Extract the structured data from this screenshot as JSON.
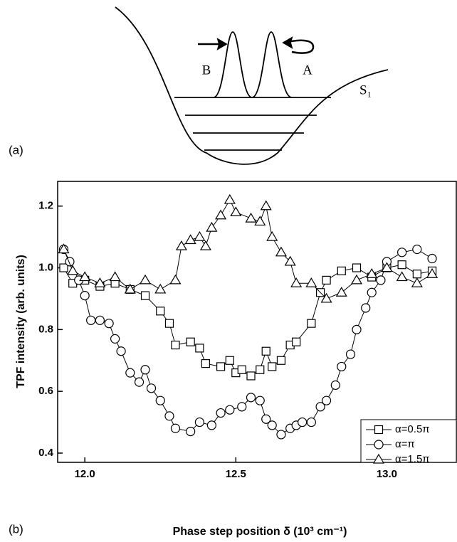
{
  "diagram": {
    "panel_label": "(a)",
    "label_a": "A",
    "label_b": "B",
    "label_s": "S₁"
  },
  "chart_data": {
    "type": "line",
    "panel_label": "(b)",
    "x_label": "Phase step position δ (10³ cm⁻¹)",
    "y_label": "TPF intensity (arb. units)",
    "xlim": [
      11.91,
      13.23
    ],
    "ylim": [
      0.37,
      1.28
    ],
    "xticks": [
      {
        "value": 12,
        "label": "12.0"
      },
      12.5,
      {
        "value": 13,
        "label": "13.0"
      }
    ],
    "yticks": [
      0.4,
      0.6,
      0.8,
      {
        "value": 1,
        "label": "1.0"
      },
      1.2
    ],
    "legend": "bottom-right",
    "series": [
      {
        "name": "α=0.5π",
        "marker": "square",
        "color": "#000000",
        "x": [
          11.93,
          11.96,
          12.0,
          12.05,
          12.1,
          12.15,
          12.2,
          12.25,
          12.28,
          12.3,
          12.35,
          12.38,
          12.4,
          12.45,
          12.48,
          12.5,
          12.52,
          12.55,
          12.58,
          12.6,
          12.62,
          12.65,
          12.68,
          12.7,
          12.75,
          12.78,
          12.8,
          12.85,
          12.9,
          12.95,
          13.0,
          13.05,
          13.1,
          13.15
        ],
        "values": [
          1.0,
          0.95,
          0.96,
          0.94,
          0.95,
          0.93,
          0.91,
          0.86,
          0.82,
          0.75,
          0.76,
          0.74,
          0.69,
          0.68,
          0.7,
          0.66,
          0.67,
          0.65,
          0.67,
          0.73,
          0.68,
          0.7,
          0.75,
          0.76,
          0.82,
          0.92,
          0.96,
          0.99,
          1.0,
          0.97,
          1.0,
          1.01,
          0.98,
          0.99
        ]
      },
      {
        "name": "α=π",
        "marker": "circle",
        "color": "#000000",
        "x": [
          11.93,
          11.95,
          11.98,
          12.0,
          12.02,
          12.05,
          12.08,
          12.1,
          12.12,
          12.15,
          12.18,
          12.2,
          12.22,
          12.25,
          12.28,
          12.3,
          12.35,
          12.38,
          12.42,
          12.45,
          12.48,
          12.52,
          12.55,
          12.58,
          12.6,
          12.62,
          12.65,
          12.68,
          12.7,
          12.72,
          12.75,
          12.78,
          12.8,
          12.83,
          12.85,
          12.88,
          12.9,
          12.93,
          12.95,
          12.98,
          13.0,
          13.05,
          13.1,
          13.15
        ],
        "values": [
          1.06,
          1.02,
          0.96,
          0.91,
          0.83,
          0.83,
          0.82,
          0.77,
          0.73,
          0.66,
          0.63,
          0.67,
          0.61,
          0.57,
          0.52,
          0.48,
          0.47,
          0.5,
          0.49,
          0.53,
          0.54,
          0.55,
          0.58,
          0.57,
          0.51,
          0.49,
          0.46,
          0.48,
          0.49,
          0.5,
          0.5,
          0.55,
          0.57,
          0.62,
          0.68,
          0.72,
          0.8,
          0.87,
          0.92,
          0.96,
          1.02,
          1.05,
          1.06,
          1.03
        ]
      },
      {
        "name": "α=1.5π",
        "marker": "triangle",
        "color": "#000000",
        "x": [
          11.93,
          11.96,
          12.0,
          12.05,
          12.1,
          12.15,
          12.2,
          12.25,
          12.3,
          12.32,
          12.35,
          12.38,
          12.4,
          12.42,
          12.45,
          12.48,
          12.5,
          12.55,
          12.58,
          12.6,
          12.62,
          12.65,
          12.68,
          12.7,
          12.75,
          12.8,
          12.85,
          12.9,
          12.95,
          13.0,
          13.05,
          13.1,
          13.15
        ],
        "values": [
          1.06,
          0.99,
          0.97,
          0.95,
          0.97,
          0.93,
          0.96,
          0.93,
          0.96,
          1.07,
          1.09,
          1.1,
          1.07,
          1.13,
          1.17,
          1.22,
          1.18,
          1.16,
          1.15,
          1.2,
          1.1,
          1.05,
          1.02,
          0.95,
          0.95,
          0.9,
          0.92,
          0.96,
          0.98,
          1.0,
          0.97,
          0.95,
          0.98
        ]
      }
    ]
  }
}
